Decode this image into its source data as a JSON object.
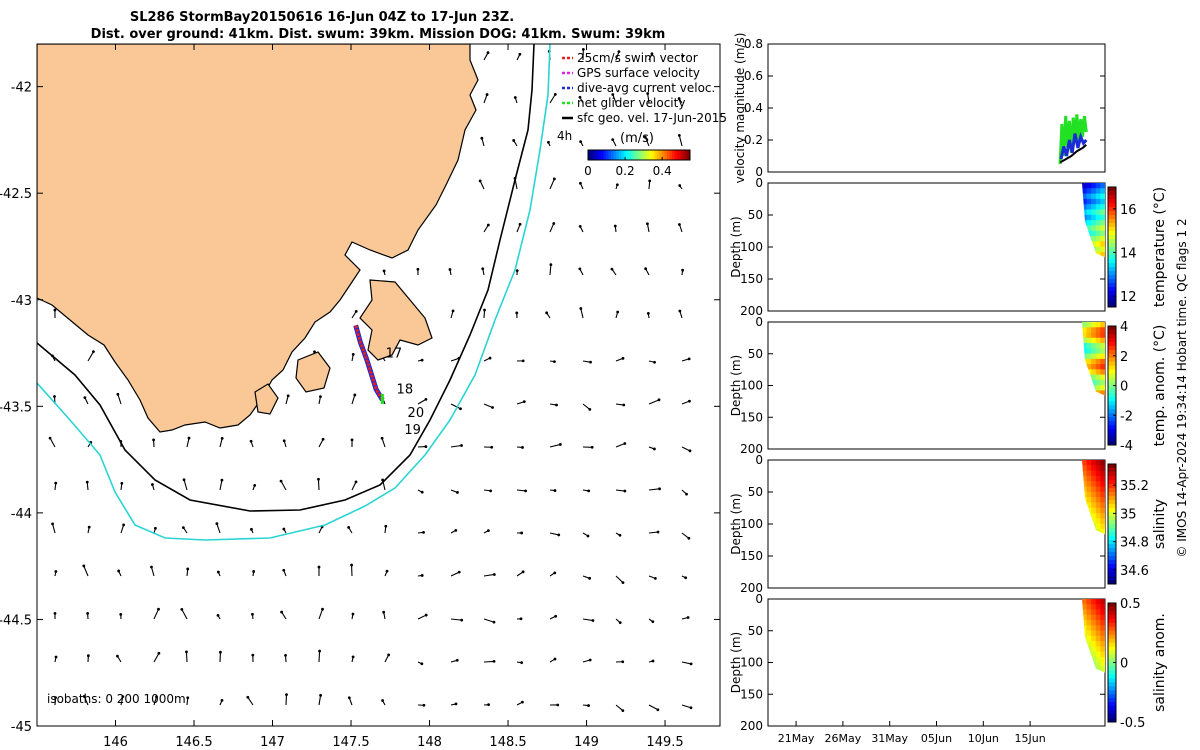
{
  "title": {
    "line1": "SL286 StormBay20150616 16-Jun 04Z to 17-Jun 23Z.",
    "line2": "Dist. over ground: 41km. Dist. swum: 39km. Mission DOG: 41km. Swum: 39km"
  },
  "colors": {
    "land": "#f9c896",
    "coast": "#000000",
    "isobath_200": "#000000",
    "isobath_1000": "#2ad4d4",
    "swim_vector": "#e02020",
    "gps_velocity": "#e020e0",
    "dive_avg_velocity": "#1c2bd8",
    "net_glider_velocity": "#22e022",
    "sfc_geo_velocity": "#000000"
  },
  "credit": "© IMOS 14-Apr-2024 19:34:14 Hobart time. QC flags 1  2",
  "chart_data": [
    {
      "type": "map",
      "name": "glider track map",
      "xlim": [
        145.5,
        149.85
      ],
      "ylim": [
        -45.0,
        -41.8
      ],
      "xticks": [
        146,
        146.5,
        147,
        147.5,
        148,
        148.5,
        149,
        149.5
      ],
      "xtick_labels": [
        "146",
        "146.5",
        "147",
        "147.5",
        "148",
        "148.5",
        "149",
        "149.5"
      ],
      "yticks": [
        -42,
        -42.5,
        -43,
        -43.5,
        -44,
        -44.5,
        -45
      ],
      "ytick_labels": [
        "-42",
        "-42.5",
        "-43",
        "-43.5",
        "-44",
        "-44.5",
        "-45"
      ],
      "legend": [
        {
          "label": "25cm/s swim vector",
          "color": "#e02020",
          "style": "dashed"
        },
        {
          "label": "GPS surface velocity",
          "color": "#e020e0",
          "style": "dashed"
        },
        {
          "label": "dive-avg current veloc.",
          "color": "#1c2bd8",
          "style": "dashed"
        },
        {
          "label": "net glider velocity",
          "color": "#22e022",
          "style": "dashed"
        },
        {
          "label": "sfc geo. vel. 17-Jun-2015",
          "color": "#000000",
          "style": "solid"
        }
      ],
      "arrow_scale_label": "4h",
      "colorbar": {
        "title": "(m/s)",
        "ticks": [
          "0",
          "0.2",
          "0.4"
        ],
        "range": [
          0,
          0.55
        ]
      },
      "isobaths_label": "isobaths: 0   200  1000m",
      "track": [
        [
          147.53,
          -43.12
        ],
        [
          147.56,
          -43.2
        ],
        [
          147.6,
          -43.28
        ],
        [
          147.63,
          -43.35
        ],
        [
          147.66,
          -43.42
        ],
        [
          147.7,
          -43.47
        ]
      ],
      "track_labels": [
        {
          "text": "17",
          "lon": 147.72,
          "lat": -43.27
        },
        {
          "text": "18",
          "lon": 147.79,
          "lat": -43.44
        },
        {
          "text": "20",
          "lon": 147.86,
          "lat": -43.55
        },
        {
          "text": "19",
          "lon": 147.84,
          "lat": -43.63
        }
      ]
    },
    {
      "type": "line",
      "name": "velocity magnitude",
      "ylabel": "velocity magnitude (m/s)",
      "ylim": [
        0,
        0.8
      ],
      "yticks": [
        0,
        0.2,
        0.4,
        0.6,
        0.8
      ],
      "ytick_labels": [
        "0",
        "0.2",
        "0.4",
        "0.6",
        "0.8"
      ],
      "xlim": [
        0,
        36
      ],
      "series": [
        {
          "color": "#22e022",
          "x": [
            31.2,
            31.4,
            31.6,
            31.8,
            32.0,
            32.2,
            32.4,
            32.6,
            32.8,
            33.0,
            33.2,
            33.4,
            33.6,
            33.8,
            34.0
          ],
          "y": [
            0.05,
            0.3,
            0.1,
            0.35,
            0.15,
            0.32,
            0.12,
            0.34,
            0.2,
            0.36,
            0.18,
            0.33,
            0.22,
            0.35,
            0.25
          ]
        },
        {
          "color": "#1c2bd8",
          "x": [
            31.3,
            31.6,
            31.9,
            32.2,
            32.5,
            32.8,
            33.1,
            33.4,
            33.7,
            34.0
          ],
          "y": [
            0.08,
            0.16,
            0.1,
            0.2,
            0.12,
            0.24,
            0.15,
            0.22,
            0.18,
            0.2
          ]
        },
        {
          "color": "#000000",
          "x": [
            31.2,
            31.8,
            32.4,
            33.0,
            33.6,
            34.0
          ],
          "y": [
            0.06,
            0.08,
            0.1,
            0.13,
            0.15,
            0.17
          ]
        }
      ]
    },
    {
      "type": "heatmap",
      "name": "temperature",
      "ylabel": "Depth (m)",
      "ylim": [
        0,
        200
      ],
      "yticks": [
        0,
        50,
        100,
        150,
        200
      ],
      "ytick_labels": [
        "0",
        "50",
        "100",
        "150",
        "200"
      ],
      "colorbar_label": "temperature (°C)",
      "colorbar_range": [
        11.5,
        17
      ],
      "colorbar_ticks": [
        "12",
        "14",
        "16"
      ]
    },
    {
      "type": "heatmap",
      "name": "temperature anomaly",
      "ylabel": "Depth (m)",
      "ylim": [
        0,
        200
      ],
      "yticks": [
        0,
        50,
        100,
        150,
        200
      ],
      "ytick_labels": [
        "0",
        "50",
        "100",
        "150",
        "200"
      ],
      "colorbar_label": "temp. anom. (°C)",
      "colorbar_range": [
        -4,
        4
      ],
      "colorbar_ticks": [
        "-4",
        "-2",
        "0",
        "2",
        "4"
      ]
    },
    {
      "type": "heatmap",
      "name": "salinity",
      "ylabel": "Depth (m)",
      "ylim": [
        0,
        200
      ],
      "yticks": [
        0,
        50,
        100,
        150,
        200
      ],
      "ytick_labels": [
        "0",
        "50",
        "100",
        "150",
        "200"
      ],
      "colorbar_label": "salinity",
      "colorbar_range": [
        34.5,
        35.35
      ],
      "colorbar_ticks": [
        "34.6",
        "34.8",
        "35",
        "35.2"
      ]
    },
    {
      "type": "heatmap",
      "name": "salinity anomaly",
      "ylabel": "Depth (m)",
      "ylim": [
        0,
        200
      ],
      "yticks": [
        0,
        50,
        100,
        150,
        200
      ],
      "ytick_labels": [
        "0",
        "50",
        "100",
        "150",
        "200"
      ],
      "colorbar_label": "salinity anom.",
      "colorbar_range": [
        -0.5,
        0.5
      ],
      "colorbar_ticks": [
        "-0.5",
        "0",
        "0.5"
      ],
      "xlim": [
        0,
        36
      ],
      "xticks": [
        3,
        8,
        13,
        18,
        23,
        28
      ],
      "xtick_labels": [
        "21May",
        "26May",
        "31May",
        "05Jun",
        "10Jun",
        "15Jun"
      ]
    }
  ]
}
